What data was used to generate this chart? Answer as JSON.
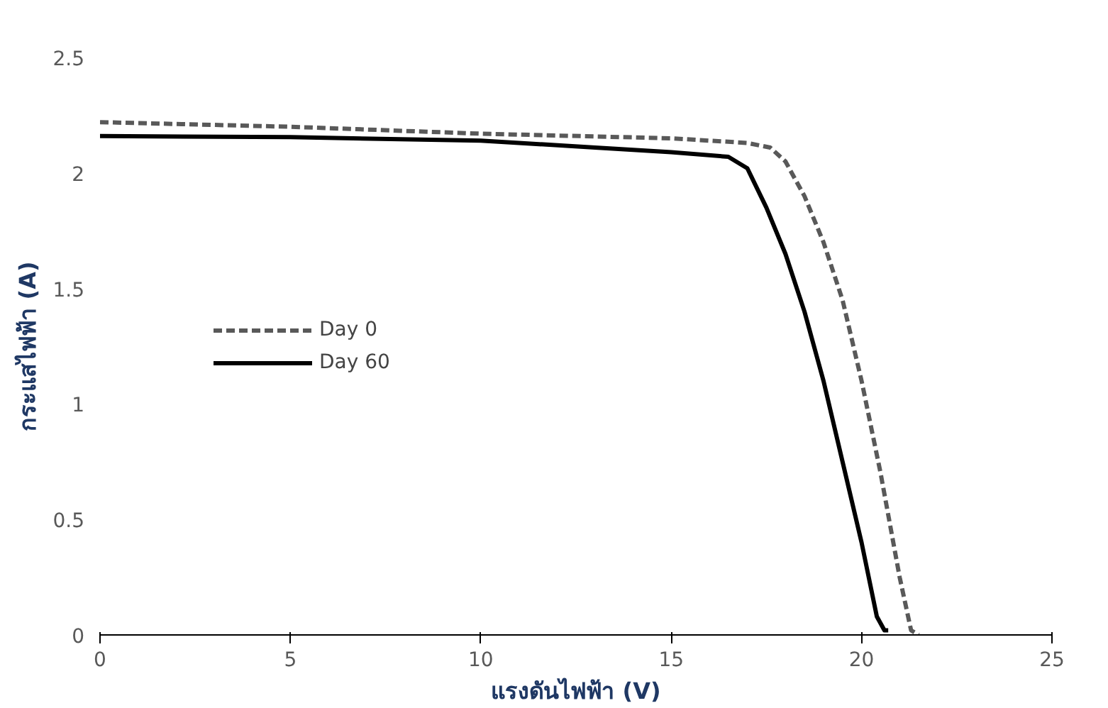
{
  "chart_data": {
    "type": "line",
    "xlabel": "แรงดันไฟฟ้า (V)",
    "ylabel": "กระแสไฟฟ้า (A)",
    "xlim": [
      0,
      25
    ],
    "ylim": [
      0,
      2.5
    ],
    "xticks": [
      0,
      5,
      10,
      15,
      20,
      25
    ],
    "yticks": [
      0,
      0.5,
      1,
      1.5,
      2,
      2.5
    ],
    "grid": false,
    "legend": "left",
    "marker": "none",
    "series": [
      {
        "name": "Day 0",
        "color": "#595959",
        "line_style": "dashed",
        "x": [
          0,
          5,
          10,
          15,
          17,
          17.6,
          18,
          18.5,
          19,
          19.5,
          20,
          20.5,
          21,
          21.3,
          21.5
        ],
        "values": [
          2.22,
          2.2,
          2.17,
          2.15,
          2.13,
          2.11,
          2.05,
          1.9,
          1.7,
          1.45,
          1.1,
          0.7,
          0.25,
          0.02,
          0
        ]
      },
      {
        "name": "Day 60",
        "color": "#000000",
        "line_style": "solid",
        "x": [
          0,
          5,
          10,
          11,
          13,
          15,
          16.5,
          17,
          17.5,
          18,
          18.5,
          19,
          19.5,
          20,
          20.4,
          20.6,
          20.7
        ],
        "values": [
          2.16,
          2.155,
          2.14,
          2.13,
          2.11,
          2.09,
          2.07,
          2.02,
          1.85,
          1.65,
          1.4,
          1.1,
          0.75,
          0.4,
          0.08,
          0.02,
          0.02
        ]
      }
    ]
  }
}
